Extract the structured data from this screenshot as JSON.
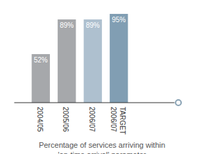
{
  "chart_data": {
    "type": "bar",
    "title": "Percentage of services arriving within\n'on-time arrival' parameter",
    "categories": [
      "2004/05",
      "2005/06",
      "2006/07",
      "TARGET 2006/07"
    ],
    "values": [
      52,
      89,
      89,
      95
    ],
    "value_labels": [
      "52%",
      "89%",
      "89%",
      "95%"
    ],
    "colors": [
      "#a6a8ab",
      "#a6a8ab",
      "#aec0cf",
      "#819eb3"
    ],
    "ylim": [
      0,
      95
    ],
    "data_labels": true,
    "tick_labels": "x",
    "grid": false
  }
}
